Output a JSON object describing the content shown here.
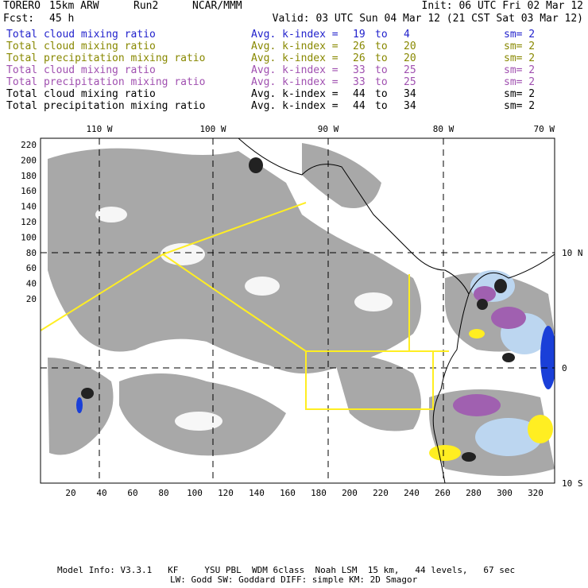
{
  "header": {
    "model": "TORERO",
    "resolution": "15km ARW",
    "run": "Run2",
    "org": "NCAR/MMM",
    "init": "Init: 06 UTC Fri 02 Mar 12",
    "fcst_label": "Fcst:",
    "fcst_value": "45 h",
    "valid": "Valid: 03 UTC Sun 04 Mar 12 (21 CST Sat 03 Mar 12)"
  },
  "legend": [
    {
      "field": "Total cloud mixing ratio",
      "kindex": "Avg. k-index = ",
      "from": "19",
      "to_word": "to",
      "to": "4",
      "sm": "sm= 2",
      "color": "#2222cc"
    },
    {
      "field": "Total cloud mixing ratio",
      "kindex": "Avg. k-index = ",
      "from": "26",
      "to_word": "to",
      "to": "20",
      "sm": "sm= 2",
      "color": "#888800"
    },
    {
      "field": "Total precipitation mixing ratio",
      "kindex": "Avg. k-index = ",
      "from": "26",
      "to_word": "to",
      "to": "20",
      "sm": "sm= 2",
      "color": "#888800"
    },
    {
      "field": "Total cloud mixing ratio",
      "kindex": "Avg. k-index = ",
      "from": "33",
      "to_word": "to",
      "to": "25",
      "sm": "sm= 2",
      "color": "#a050b0"
    },
    {
      "field": "Total precipitation mixing ratio",
      "kindex": "Avg. k-index = ",
      "from": "33",
      "to_word": "to",
      "to": "25",
      "sm": "sm= 2",
      "color": "#a050b0"
    },
    {
      "field": "Total cloud mixing ratio",
      "kindex": "Avg. k-index = ",
      "from": "44",
      "to_word": "to",
      "to": "34",
      "sm": "sm= 2",
      "color": "#000000"
    },
    {
      "field": "Total precipitation mixing ratio",
      "kindex": "Avg. k-index = ",
      "from": "44",
      "to_word": "to",
      "to": "34",
      "sm": "sm= 2",
      "color": "#000000"
    }
  ],
  "map": {
    "lon_labels": [
      "110 W",
      "100 W",
      "90 W",
      "80 W",
      "70 W"
    ],
    "lat_labels": [
      "10 N",
      "0",
      "10 S"
    ],
    "y_ticks": [
      "220",
      "200",
      "180",
      "160",
      "140",
      "120",
      "100",
      "80",
      "60",
      "40",
      "20"
    ],
    "x_ticks": [
      "20",
      "40",
      "60",
      "80",
      "100",
      "120",
      "140",
      "160",
      "180",
      "200",
      "220",
      "240",
      "260",
      "280",
      "300",
      "320"
    ],
    "box_color": "#ffee22",
    "coast_color": "#000000"
  },
  "footer": {
    "line1": "Model Info: V3.3.1   KF     YSU PBL  WDM 6class  Noah LSM  15 km,   44 levels,   67 sec",
    "line2": "LW: Godd SW: Goddard DIFF: simple KM: 2D Smagor"
  }
}
